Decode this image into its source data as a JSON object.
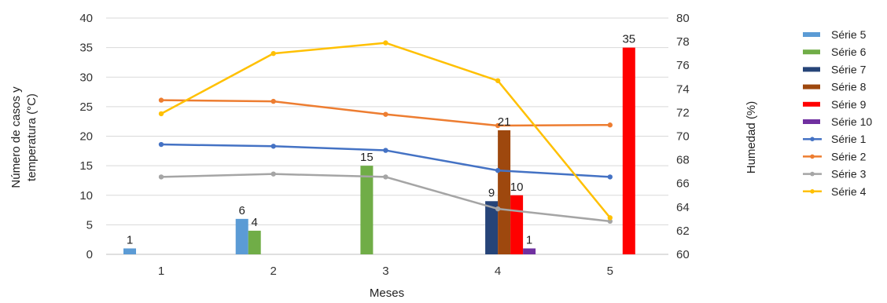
{
  "chart_data": {
    "type": "bar",
    "categories": [
      "1",
      "2",
      "3",
      "4",
      "5"
    ],
    "xlabel": "Meses",
    "ylabel_lines": [
      "Número de casos y",
      "temperatura (°C)"
    ],
    "y2label": "Humedad (%)",
    "ylim": [
      0,
      40
    ],
    "y2lim": [
      60,
      80
    ],
    "yticks": [
      "0",
      "5",
      "10",
      "15",
      "20",
      "25",
      "30",
      "35",
      "40"
    ],
    "y2ticks": [
      "60",
      "62",
      "64",
      "66",
      "68",
      "70",
      "72",
      "74",
      "76",
      "78",
      "80"
    ],
    "grid": true,
    "legend_position": "right",
    "bar_series": [
      {
        "name": "Série 5",
        "color": "#5B9BD5",
        "values": [
          1,
          6,
          null,
          null,
          null
        ]
      },
      {
        "name": "Série 6",
        "color": "#70AD47",
        "values": [
          null,
          4,
          15,
          null,
          null
        ]
      },
      {
        "name": "Série 7",
        "color": "#264478",
        "values": [
          null,
          null,
          null,
          9,
          null
        ]
      },
      {
        "name": "Série 8",
        "color": "#9E480E",
        "values": [
          null,
          null,
          null,
          21,
          null
        ]
      },
      {
        "name": "Série 9",
        "color": "#FF0000",
        "values": [
          null,
          null,
          null,
          10,
          35
        ]
      },
      {
        "name": "Série 10",
        "color": "#7030A0",
        "values": [
          null,
          null,
          null,
          1,
          null
        ]
      }
    ],
    "line_series": [
      {
        "name": "Série 1",
        "color": "#4472C4",
        "axis": "left",
        "values": [
          18.6,
          18.3,
          17.6,
          14.2,
          13.1
        ]
      },
      {
        "name": "Série 2",
        "color": "#ED7D31",
        "axis": "left",
        "values": [
          26.1,
          25.9,
          23.7,
          21.8,
          21.9
        ]
      },
      {
        "name": "Série 3",
        "color": "#A5A5A5",
        "axis": "left",
        "values": [
          13.1,
          13.6,
          13.1,
          7.7,
          5.6
        ]
      },
      {
        "name": "Série 4",
        "color": "#FFC000",
        "axis": "right",
        "values": [
          71.9,
          77.0,
          77.9,
          74.7,
          63.1
        ]
      }
    ],
    "legend_order": [
      "Série 5",
      "Série 6",
      "Série 7",
      "Série 8",
      "Série 9",
      "Série 10",
      "Série 1",
      "Série 2",
      "Série 3",
      "Série 4"
    ]
  }
}
